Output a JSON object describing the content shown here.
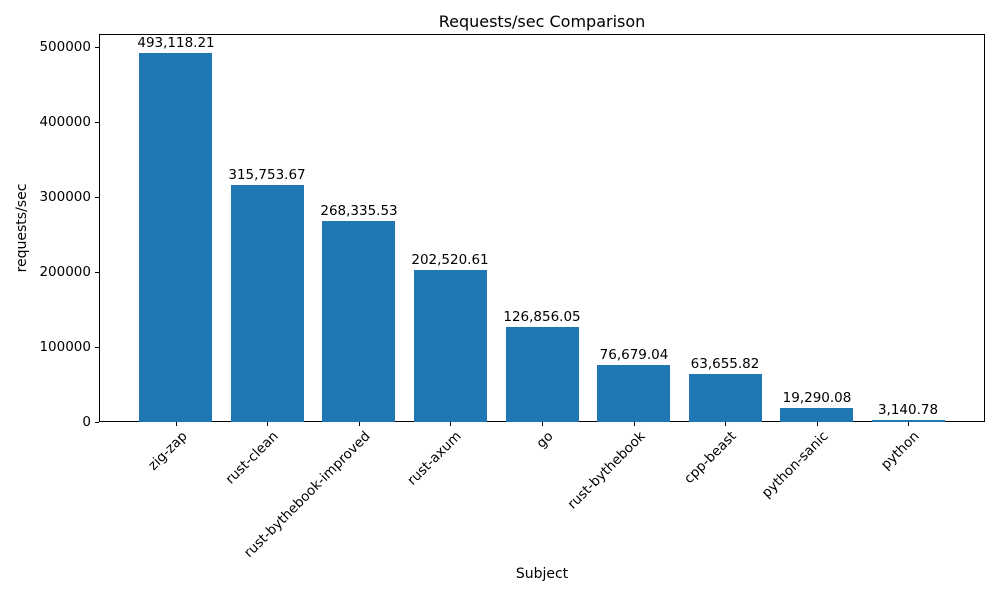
{
  "chart_data": {
    "type": "bar",
    "title": "Requests/sec Comparison",
    "xlabel": "Subject",
    "ylabel": "requests/sec",
    "categories": [
      "zig-zap",
      "rust-clean",
      "rust-bythebook-improved",
      "rust-axum",
      "go",
      "rust-bythebook",
      "cpp-beast",
      "python-sanic",
      "python"
    ],
    "values": [
      493118.21,
      315753.67,
      268335.53,
      202520.61,
      126856.05,
      76679.04,
      63655.82,
      19290.08,
      3140.78
    ],
    "value_labels": [
      "493,118.21",
      "315,753.67",
      "268,335.53",
      "202,520.61",
      "126,856.05",
      "76,679.04",
      "63,655.82",
      "19,290.08",
      "3,140.78"
    ],
    "yticks": [
      0,
      100000,
      200000,
      300000,
      400000,
      500000
    ],
    "ylim": [
      0,
      517774
    ],
    "bar_color": "#1f77b4",
    "grid": false,
    "legend": "none",
    "background_color": "#ffffff",
    "text_color": "#000000"
  }
}
